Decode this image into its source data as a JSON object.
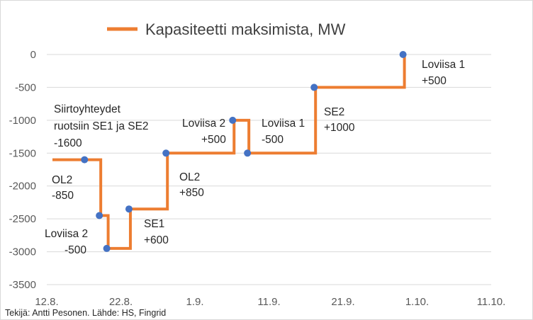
{
  "chart_data": {
    "type": "line",
    "subtype": "step",
    "legend_position": "top",
    "grid": true,
    "series": [
      {
        "name": "Kapasiteetti maksimista, MW",
        "color": "#ED7D31",
        "x": [
          "2024-08-17",
          "2024-08-19",
          "2024-08-20",
          "2024-08-23",
          "2024-08-28",
          "2024-09-06",
          "2024-09-08",
          "2024-09-17",
          "2024-09-29"
        ],
        "y": [
          -1600,
          -2450,
          -2950,
          -2350,
          -1500,
          -1000,
          -1500,
          -500,
          0
        ]
      }
    ],
    "step_start_x": "2024-08-12",
    "points": [
      {
        "x": "2024-08-17",
        "y": -1600
      },
      {
        "x": "2024-08-19",
        "y": -2450
      },
      {
        "x": "2024-08-20",
        "y": -2950
      },
      {
        "x": "2024-08-23",
        "y": -2350
      },
      {
        "x": "2024-08-28",
        "y": -1500
      },
      {
        "x": "2024-09-06",
        "y": -1000
      },
      {
        "x": "2024-09-08",
        "y": -1500
      },
      {
        "x": "2024-09-17",
        "y": -500
      },
      {
        "x": "2024-09-29",
        "y": 0
      }
    ],
    "x_ticks": [
      "12.8.",
      "22.8.",
      "1.9.",
      "11.9.",
      "21.9.",
      "1.10.",
      "11.10."
    ],
    "y_ticks": [
      "0",
      "-500",
      "-1000",
      "-1500",
      "-2000",
      "-2500",
      "-3000",
      "-3500"
    ],
    "ylim": [
      -3500,
      0
    ],
    "xlim": [
      "2024-08-12",
      "2024-10-11"
    ],
    "annotations": [
      {
        "id": "siirto",
        "lines": [
          "Siirtoyhteydet",
          "ruotsiin SE1 ja SE2",
          "-1600"
        ]
      },
      {
        "id": "ol2",
        "lines": [
          "OL2",
          "-850"
        ]
      },
      {
        "id": "loviisa2-minus",
        "lines": [
          "Loviisa 2",
          "-500"
        ]
      },
      {
        "id": "se1",
        "lines": [
          "SE1",
          "+600"
        ]
      },
      {
        "id": "ol2-plus",
        "lines": [
          "OL2",
          "+850"
        ]
      },
      {
        "id": "loviisa2-plus",
        "lines": [
          "Loviisa 2",
          "+500"
        ]
      },
      {
        "id": "loviisa1-minus",
        "lines": [
          "Loviisa 1",
          "-500"
        ]
      },
      {
        "id": "se2",
        "lines": [
          "SE2",
          "+1000"
        ]
      },
      {
        "id": "loviisa1-plus",
        "lines": [
          "Loviisa 1",
          "+500"
        ]
      }
    ],
    "marker_color": "#4472C4"
  },
  "footer": {
    "source": "Tekijä: Antti Pesonen. Lähde: HS, Fingrid"
  }
}
